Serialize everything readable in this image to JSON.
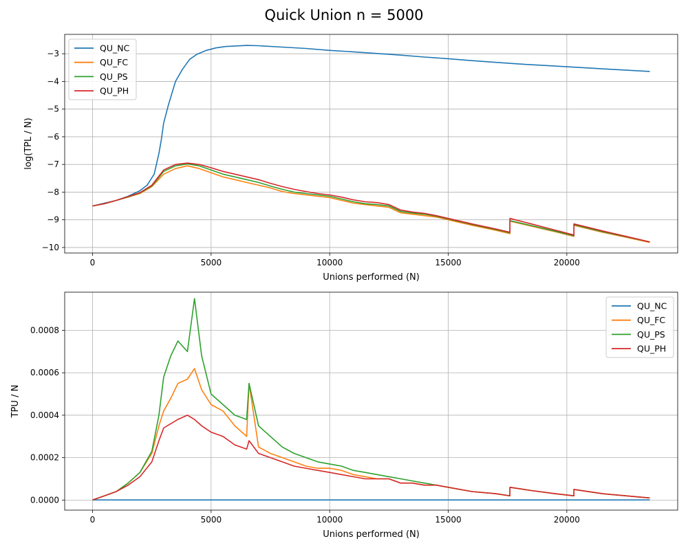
{
  "figure": {
    "title": "Quick Union n = 5000"
  },
  "colors": {
    "QU_NC": "#1f77b4",
    "QU_FC": "#ff7f0e",
    "QU_PS": "#2ca02c",
    "QU_PH": "#d62728",
    "grid": "#b0b0b0"
  },
  "chart_data": [
    {
      "type": "line",
      "title": "",
      "xlabel": "Unions performed (N)",
      "ylabel": "log(TPL / N)",
      "xlim": [
        -1175,
        24675
      ],
      "ylim": [
        -10.2,
        -2.3
      ],
      "xticks": [
        0,
        5000,
        10000,
        15000,
        20000
      ],
      "yticks": [
        -10,
        -9,
        -8,
        -7,
        -6,
        -5,
        -4,
        -3
      ],
      "ytick_labels": [
        "−10",
        "−9",
        "−8",
        "−7",
        "−6",
        "−5",
        "−4",
        "−3"
      ],
      "grid": true,
      "legend": "top-left",
      "series": [
        {
          "name": "QU_NC",
          "x": [
            0,
            500,
            1000,
            1500,
            2000,
            2300,
            2600,
            2800,
            2900,
            3000,
            3200,
            3500,
            3800,
            4100,
            4400,
            4800,
            5200,
            5600,
            6000,
            6500,
            7000,
            8000,
            9000,
            10000,
            11000,
            12000,
            13000,
            14000,
            15000,
            16000,
            17000,
            18000,
            19000,
            20000,
            21000,
            22000,
            23500
          ],
          "y": [
            -8.5,
            -8.4,
            -8.3,
            -8.15,
            -7.95,
            -7.75,
            -7.35,
            -6.6,
            -6.1,
            -5.5,
            -4.85,
            -4.0,
            -3.55,
            -3.2,
            -3.02,
            -2.88,
            -2.79,
            -2.74,
            -2.72,
            -2.7,
            -2.71,
            -2.76,
            -2.81,
            -2.88,
            -2.93,
            -2.99,
            -3.05,
            -3.12,
            -3.18,
            -3.25,
            -3.31,
            -3.37,
            -3.42,
            -3.47,
            -3.52,
            -3.57,
            -3.64
          ]
        },
        {
          "name": "QU_FC",
          "x": [
            0,
            500,
            1000,
            1500,
            2000,
            2500,
            3000,
            3500,
            4000,
            4500,
            5000,
            5500,
            6000,
            6500,
            7000,
            7500,
            8000,
            8500,
            9000,
            9500,
            10000,
            10500,
            11000,
            11500,
            12000,
            12500,
            13000,
            13500,
            14000,
            14500,
            15000,
            16000,
            17000,
            17600,
            17601,
            18500,
            19500,
            20300,
            20301,
            21500,
            22500,
            23500
          ],
          "y": [
            -8.5,
            -8.42,
            -8.3,
            -8.18,
            -8.05,
            -7.8,
            -7.35,
            -7.15,
            -7.05,
            -7.15,
            -7.3,
            -7.45,
            -7.55,
            -7.65,
            -7.75,
            -7.85,
            -7.98,
            -8.05,
            -8.1,
            -8.15,
            -8.2,
            -8.3,
            -8.4,
            -8.45,
            -8.5,
            -8.55,
            -8.75,
            -8.8,
            -8.85,
            -8.9,
            -9.0,
            -9.2,
            -9.38,
            -9.5,
            -9.05,
            -9.23,
            -9.43,
            -9.6,
            -9.2,
            -9.45,
            -9.63,
            -9.82
          ]
        },
        {
          "name": "QU_PS",
          "x": [
            0,
            500,
            1000,
            1500,
            2000,
            2500,
            3000,
            3500,
            4000,
            4500,
            5000,
            5500,
            6000,
            6500,
            7000,
            7500,
            8000,
            8500,
            9000,
            9500,
            10000,
            10500,
            11000,
            11500,
            12000,
            12500,
            13000,
            13500,
            14000,
            14500,
            15000,
            16000,
            17000,
            17600,
            17601,
            18500,
            19500,
            20300,
            20301,
            21500,
            22500,
            23500
          ],
          "y": [
            -8.5,
            -8.42,
            -8.3,
            -8.17,
            -8.03,
            -7.78,
            -7.25,
            -7.05,
            -6.98,
            -7.05,
            -7.2,
            -7.35,
            -7.45,
            -7.55,
            -7.65,
            -7.78,
            -7.9,
            -8.0,
            -8.05,
            -8.1,
            -8.15,
            -8.25,
            -8.35,
            -8.42,
            -8.45,
            -8.5,
            -8.7,
            -8.76,
            -8.8,
            -8.87,
            -8.97,
            -9.17,
            -9.35,
            -9.47,
            -9.03,
            -9.21,
            -9.41,
            -9.58,
            -9.18,
            -9.43,
            -9.61,
            -9.8
          ]
        },
        {
          "name": "QU_PH",
          "x": [
            0,
            500,
            1000,
            1500,
            2000,
            2500,
            3000,
            3500,
            4000,
            4500,
            5000,
            5500,
            6000,
            6500,
            7000,
            7500,
            8000,
            8500,
            9000,
            9500,
            10000,
            10500,
            11000,
            11500,
            12000,
            12500,
            13000,
            13500,
            14000,
            14500,
            15000,
            16000,
            17000,
            17600,
            17601,
            18500,
            19500,
            20300,
            20301,
            21500,
            22500,
            23500
          ],
          "y": [
            -8.5,
            -8.42,
            -8.3,
            -8.16,
            -8.02,
            -7.75,
            -7.2,
            -7.0,
            -6.95,
            -7.0,
            -7.12,
            -7.25,
            -7.35,
            -7.45,
            -7.55,
            -7.68,
            -7.8,
            -7.9,
            -7.98,
            -8.05,
            -8.1,
            -8.18,
            -8.28,
            -8.35,
            -8.38,
            -8.45,
            -8.65,
            -8.72,
            -8.77,
            -8.85,
            -8.95,
            -9.15,
            -9.33,
            -9.45,
            -8.95,
            -9.15,
            -9.37,
            -9.55,
            -9.15,
            -9.4,
            -9.6,
            -9.8
          ]
        }
      ]
    },
    {
      "type": "line",
      "title": "",
      "xlabel": "Unions performed (N)",
      "ylabel": "TPU / N",
      "xlim": [
        -1175,
        24675
      ],
      "ylim": [
        -4.75e-05,
        0.00098
      ],
      "xticks": [
        0,
        5000,
        10000,
        15000,
        20000
      ],
      "yticks": [
        0.0,
        0.0002,
        0.0004,
        0.0006,
        0.0008
      ],
      "ytick_labels": [
        "0.0000",
        "0.0002",
        "0.0004",
        "0.0006",
        "0.0008"
      ],
      "grid": true,
      "legend": "top-right",
      "series": [
        {
          "name": "QU_NC",
          "x": [
            0,
            23500
          ],
          "y": [
            5e-07,
            5e-07
          ]
        },
        {
          "name": "QU_FC",
          "x": [
            0,
            500,
            1000,
            1500,
            2000,
            2500,
            2800,
            3000,
            3300,
            3600,
            4000,
            4300,
            4600,
            5000,
            5500,
            6000,
            6500,
            6600,
            7000,
            7500,
            8000,
            8500,
            9000,
            9500,
            10000,
            10500,
            11000,
            11500,
            12000,
            12500,
            13000,
            13500,
            14000,
            14500,
            15000,
            16000,
            17000,
            17600,
            17601,
            18500,
            19500,
            20300,
            20301,
            21500,
            22500,
            23500
          ],
          "y": [
            0.0,
            2e-05,
            4e-05,
            8e-05,
            0.00013,
            0.00022,
            0.00035,
            0.00042,
            0.00048,
            0.00055,
            0.00057,
            0.00062,
            0.00052,
            0.00045,
            0.00042,
            0.00035,
            0.0003,
            0.00055,
            0.00025,
            0.00022,
            0.0002,
            0.00018,
            0.00016,
            0.00015,
            0.00015,
            0.00014,
            0.00012,
            0.00011,
            0.0001,
            0.0001,
            8e-05,
            8e-05,
            7e-05,
            7e-05,
            6e-05,
            4e-05,
            3e-05,
            2e-05,
            6e-05,
            4.5e-05,
            3e-05,
            2e-05,
            5e-05,
            3e-05,
            2e-05,
            1e-05
          ]
        },
        {
          "name": "QU_PS",
          "x": [
            0,
            500,
            1000,
            1500,
            2000,
            2500,
            2800,
            3000,
            3300,
            3600,
            4000,
            4300,
            4600,
            5000,
            5500,
            6000,
            6500,
            6600,
            7000,
            7500,
            8000,
            8500,
            9000,
            9500,
            10000,
            10500,
            11000,
            11500,
            12000,
            12500,
            13000,
            13500,
            14000,
            14500,
            15000,
            16000,
            17000,
            17600,
            17601,
            18500,
            19500,
            20300,
            20301,
            21500,
            22500,
            23500
          ],
          "y": [
            0.0,
            2e-05,
            4e-05,
            8e-05,
            0.00013,
            0.00023,
            0.0004,
            0.00058,
            0.00068,
            0.00075,
            0.0007,
            0.00095,
            0.00068,
            0.0005,
            0.00045,
            0.0004,
            0.00038,
            0.00055,
            0.00035,
            0.0003,
            0.00025,
            0.00022,
            0.0002,
            0.00018,
            0.00017,
            0.00016,
            0.00014,
            0.00013,
            0.00012,
            0.00011,
            0.0001,
            9e-05,
            8e-05,
            7e-05,
            6e-05,
            4e-05,
            3e-05,
            2e-05,
            6e-05,
            4.5e-05,
            3e-05,
            2e-05,
            5e-05,
            3e-05,
            2e-05,
            1e-05
          ]
        },
        {
          "name": "QU_PH",
          "x": [
            0,
            500,
            1000,
            1500,
            2000,
            2500,
            2800,
            3000,
            3300,
            3600,
            4000,
            4300,
            4600,
            5000,
            5500,
            6000,
            6500,
            6600,
            7000,
            7500,
            8000,
            8500,
            9000,
            9500,
            10000,
            10500,
            11000,
            11500,
            12000,
            12500,
            13000,
            13500,
            14000,
            14500,
            15000,
            16000,
            17000,
            17600,
            17601,
            18500,
            19500,
            20300,
            20301,
            21500,
            22500,
            23500
          ],
          "y": [
            0.0,
            2e-05,
            4e-05,
            7e-05,
            0.00011,
            0.00018,
            0.00028,
            0.00034,
            0.00036,
            0.00038,
            0.0004,
            0.00038,
            0.00035,
            0.00032,
            0.0003,
            0.00026,
            0.00024,
            0.00028,
            0.00022,
            0.0002,
            0.00018,
            0.00016,
            0.00015,
            0.00014,
            0.00013,
            0.00012,
            0.00011,
            0.0001,
            0.0001,
            0.0001,
            8e-05,
            8e-05,
            7e-05,
            7e-05,
            6e-05,
            4e-05,
            3e-05,
            2e-05,
            6e-05,
            4.5e-05,
            3e-05,
            2e-05,
            5e-05,
            3e-05,
            2e-05,
            1e-05
          ]
        }
      ]
    }
  ]
}
